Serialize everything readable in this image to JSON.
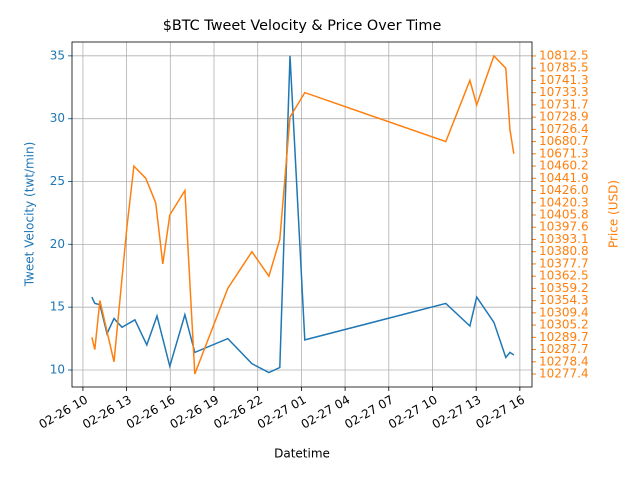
{
  "chart_data": {
    "type": "line",
    "title": "$BTC Tweet Velocity & Price Over Time",
    "x_label": "Datetime",
    "y_label": "Tweet Velocity (twt/min)",
    "y2_label": "Price (USD)",
    "xlim": [
      "02-26 09:15",
      "02-27 16:50"
    ],
    "xticks": [
      {
        "value": "02-26 10:00",
        "label": "02-26 10"
      },
      {
        "value": "02-26 13:00",
        "label": "02-26 13"
      },
      {
        "value": "02-26 16:00",
        "label": "02-26 16"
      },
      {
        "value": "02-26 19:00",
        "label": "02-26 19"
      },
      {
        "value": "02-26 22:00",
        "label": "02-26 22"
      },
      {
        "value": "02-27 01:00",
        "label": "02-27 01"
      },
      {
        "value": "02-27 04:00",
        "label": "02-27 04"
      },
      {
        "value": "02-27 07:00",
        "label": "02-27 07"
      },
      {
        "value": "02-27 10:00",
        "label": "02-27 10"
      },
      {
        "value": "02-27 13:00",
        "label": "02-27 13"
      },
      {
        "value": "02-27 16:00",
        "label": "02-27 16"
      }
    ],
    "ylim": [
      8.65,
      36.1
    ],
    "yticks": [
      10,
      15,
      20,
      25,
      30,
      35
    ],
    "y2categories": [
      "10277.4",
      "10278.4",
      "10287.7",
      "10289.7",
      "10305.2",
      "10309.4",
      "10354.3",
      "10359.2",
      "10362.5",
      "10377.7",
      "10380.8",
      "10393.1",
      "10397.6",
      "10405.8",
      "10420.3",
      "10426.0",
      "10441.9",
      "10460.2",
      "10671.3",
      "10680.7",
      "10726.4",
      "10728.9",
      "10731.7",
      "10733.3",
      "10741.3",
      "10785.5",
      "10812.5"
    ],
    "grid": true,
    "series": [
      {
        "name": "Tweet Velocity",
        "color": "#1f77b4",
        "axis": "y",
        "x": [
          "02-26 10:37",
          "02-26 10:49",
          "02-26 11:10",
          "02-26 11:39",
          "02-26 12:08",
          "02-26 12:41",
          "02-26 13:34",
          "02-26 14:23",
          "02-26 15:05",
          "02-26 15:58",
          "02-26 17:00",
          "02-26 17:41",
          "02-26 19:57",
          "02-26 21:36",
          "02-26 22:46",
          "02-26 23:31",
          "02-27 00:13",
          "02-27 01:14",
          "02-27 10:55",
          "02-27 12:34",
          "02-27 13:02",
          "02-27 14:13",
          "02-27 15:02",
          "02-27 15:19",
          "02-27 15:35"
        ],
        "values": [
          15.8,
          15.3,
          15.2,
          12.9,
          14.1,
          13.4,
          14.0,
          12.0,
          14.3,
          10.3,
          14.4,
          11.4,
          12.5,
          10.5,
          9.8,
          10.2,
          35.0,
          12.4,
          15.3,
          13.5,
          15.8,
          13.8,
          11.0,
          11.4,
          11.2
        ]
      },
      {
        "name": "Price",
        "color": "#ff7f0e",
        "axis": "y2",
        "x": [
          "02-26 10:37",
          "02-26 10:49",
          "02-26 11:10",
          "02-26 12:08",
          "02-26 13:01",
          "02-26 13:30",
          "02-26 14:19",
          "02-26 15:00",
          "02-26 15:29",
          "02-26 15:58",
          "02-26 17:00",
          "02-26 17:41",
          "02-26 19:57",
          "02-26 21:36",
          "02-26 22:46",
          "02-26 23:31",
          "02-27 00:13",
          "02-27 01:14",
          "02-27 10:55",
          "02-27 12:34",
          "02-27 13:02",
          "02-27 14:13",
          "02-27 15:02",
          "02-27 15:19",
          "02-27 15:35"
        ],
        "values": [
          10289.7,
          10287.7,
          10354.3,
          10278.4,
          10397.6,
          10460.2,
          10441.9,
          10420.3,
          10377.7,
          10405.8,
          10426.0,
          10277.4,
          10359.2,
          10380.8,
          10362.5,
          10393.1,
          10728.9,
          10733.3,
          10680.7,
          10741.3,
          10731.7,
          10812.5,
          10785.5,
          10726.4,
          10671.3
        ]
      }
    ]
  }
}
